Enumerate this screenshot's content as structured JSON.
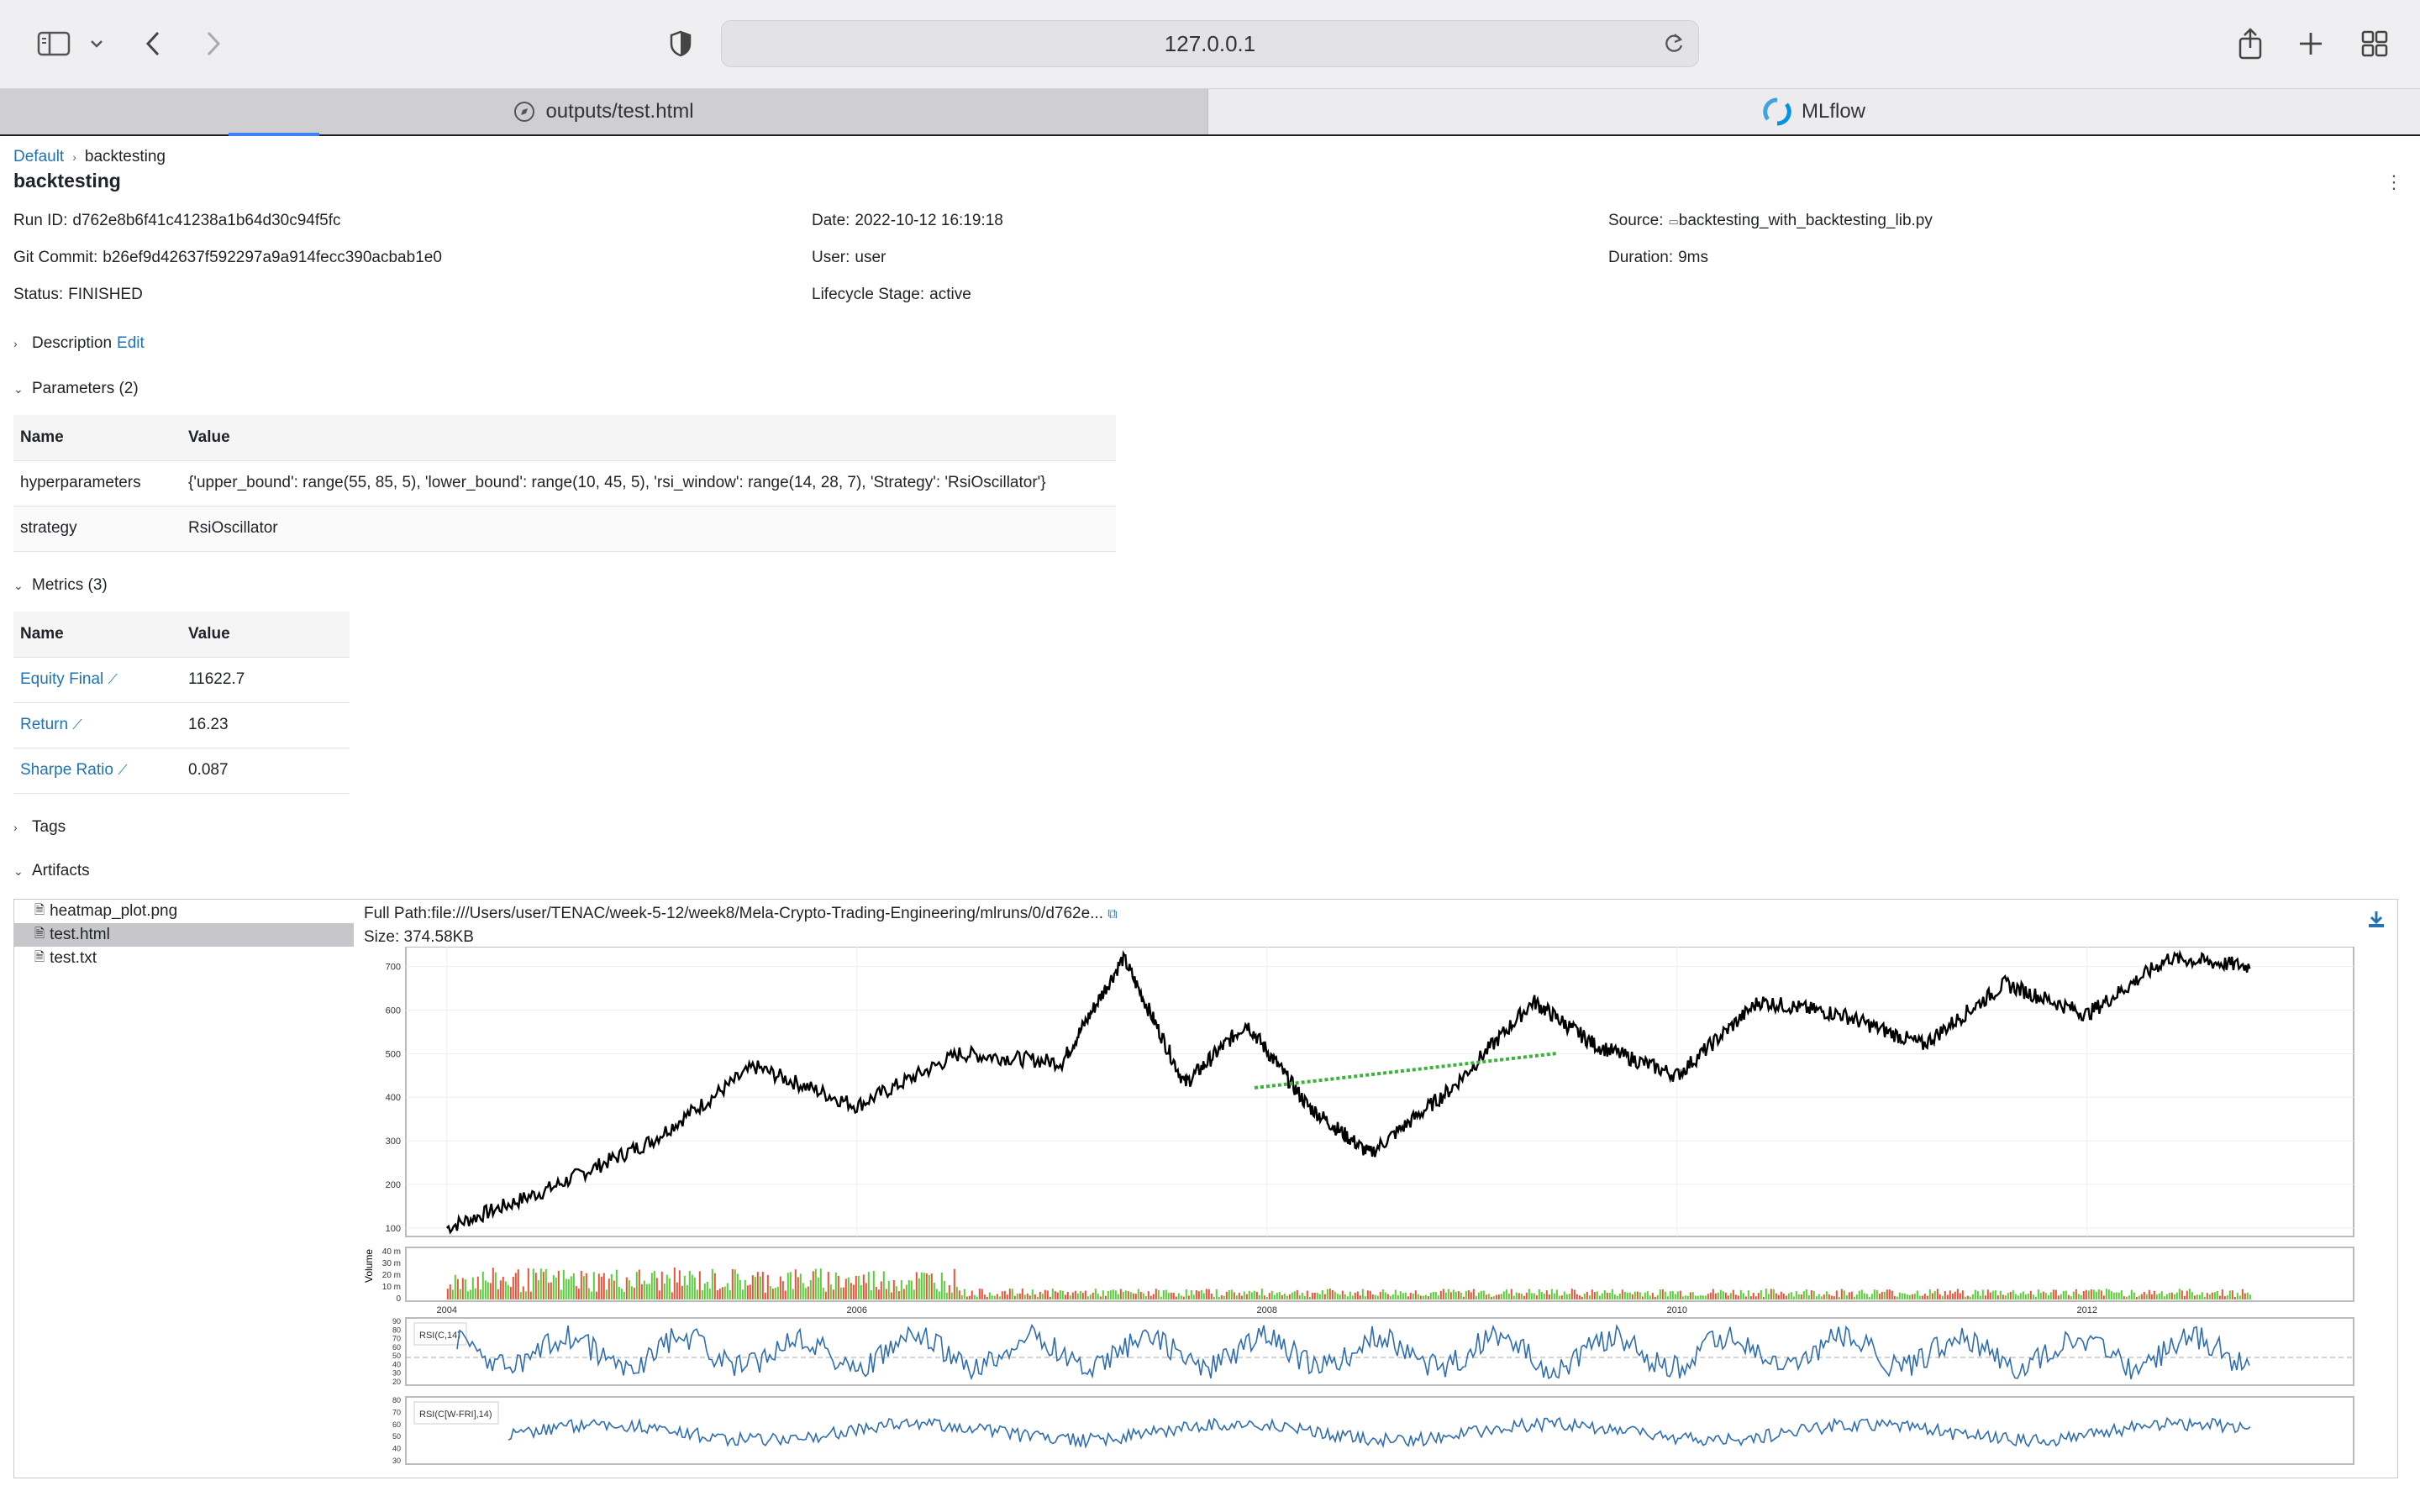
{
  "browser": {
    "url": "127.0.0.1",
    "tabs": [
      {
        "label": "outputs/test.html"
      },
      {
        "label": "MLflow"
      }
    ]
  },
  "breadcrumb": {
    "root": "Default",
    "current": "backtesting"
  },
  "run": {
    "title": "backtesting",
    "run_id_label": "Run ID:",
    "run_id": "d762e8b6f41c41238a1b64d30c94f5fc",
    "git_commit_label": "Git Commit:",
    "git_commit": "b26ef9d42637f592297a9a914fecc390acbab1e0",
    "status_label": "Status:",
    "status": "FINISHED",
    "date_label": "Date:",
    "date": "2022-10-12 16:19:18",
    "user_label": "User:",
    "user": "user",
    "lifecycle_label": "Lifecycle Stage:",
    "lifecycle": "active",
    "source_label": "Source:",
    "source": "backtesting_with_backtesting_lib.py",
    "duration_label": "Duration:",
    "duration": "9ms"
  },
  "sections": {
    "description": "Description",
    "edit": "Edit",
    "parameters": "Parameters (2)",
    "metrics": "Metrics (3)",
    "tags": "Tags",
    "artifacts": "Artifacts"
  },
  "parameters": {
    "headers": [
      "Name",
      "Value"
    ],
    "rows": [
      {
        "name": "hyperparameters",
        "value": "{'upper_bound': range(55, 85, 5), 'lower_bound': range(10, 45, 5), 'rsi_window': range(14, 28, 7), 'Strategy': 'RsiOscillator'}"
      },
      {
        "name": "strategy",
        "value": "RsiOscillator"
      }
    ]
  },
  "metrics": {
    "headers": [
      "Name",
      "Value"
    ],
    "rows": [
      {
        "name": "Equity Final",
        "value": "11622.7"
      },
      {
        "name": "Return",
        "value": "16.23"
      },
      {
        "name": "Sharpe Ratio",
        "value": "0.087"
      }
    ]
  },
  "artifacts": {
    "files": [
      "heatmap_plot.png",
      "test.html",
      "test.txt"
    ],
    "selected": "test.html",
    "full_path": "Full Path:file:///Users/user/TENAC/week-5-12/week8/Mela-Crypto-Trading-Engineering/mlruns/0/d762e...",
    "size": "Size: 374.58KB"
  },
  "chart_data": {
    "type": "line",
    "price_axis": {
      "ticks": [
        "700",
        "600",
        "500",
        "400",
        "300",
        "200",
        "100"
      ],
      "ylim": [
        90,
        730
      ]
    },
    "x_ticks": [
      "2004",
      "2006",
      "2008",
      "2010",
      "2012"
    ],
    "price_series": {
      "x": [
        2004.0,
        2004.5,
        2005.0,
        2005.5,
        2006.0,
        2006.5,
        2007.0,
        2007.3,
        2007.6,
        2007.9,
        2008.2,
        2008.5,
        2008.9,
        2009.3,
        2009.6,
        2010.0,
        2010.4,
        2010.8,
        2011.2,
        2011.6,
        2012.0,
        2012.4,
        2012.8
      ],
      "y": [
        100,
        190,
        300,
        470,
        380,
        500,
        480,
        720,
        430,
        570,
        380,
        270,
        420,
        620,
        520,
        450,
        620,
        590,
        520,
        660,
        590,
        720,
        700
      ]
    },
    "volume_axis": {
      "label": "Volume",
      "ticks": [
        "40 m",
        "30 m",
        "20 m",
        "10 m",
        "0"
      ]
    },
    "rsi1": {
      "label": "RSI(C,14)",
      "ticks": [
        "90",
        "80",
        "70",
        "60",
        "50",
        "40",
        "30",
        "20"
      ]
    },
    "rsi2": {
      "label": "RSI(C[W-FRI],14)",
      "ticks": [
        "80",
        "70",
        "60",
        "50",
        "40",
        "30"
      ]
    }
  }
}
